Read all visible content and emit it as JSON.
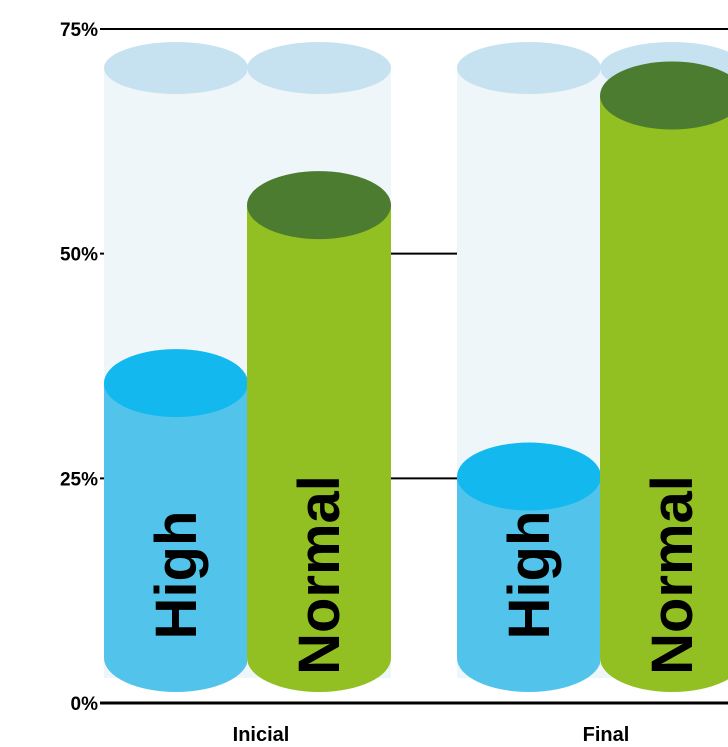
{
  "chart_data": {
    "type": "bar",
    "style": "3d-cylinder",
    "categories": [
      "Inicial",
      "Final"
    ],
    "series": [
      {
        "name": "High",
        "values": [
          35.6,
          25.2
        ],
        "color": "#52c4ec",
        "top_color": "#12b8ee"
      },
      {
        "name": "Normal",
        "values": [
          55.4,
          67.6
        ],
        "color": "#92c022",
        "top_color": "#4b7c30"
      }
    ],
    "yticks": [
      "0%",
      "25%",
      "50%",
      "75%"
    ],
    "ylim": [
      0,
      75
    ],
    "track_color": "#eef6fa",
    "track_top_color": "#c6e2f0",
    "grid": true,
    "legend": "none"
  }
}
